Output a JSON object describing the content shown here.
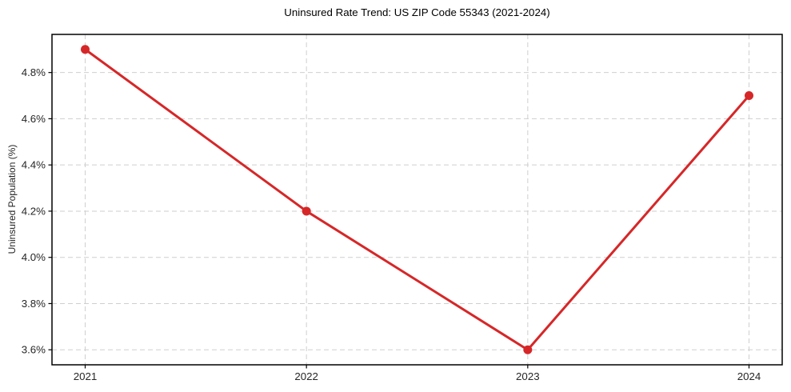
{
  "figure": {
    "background": "#ffffff"
  },
  "chart_data": {
    "type": "line",
    "title": "Uninsured Rate Trend: US ZIP Code 55343 (2021-2024)",
    "xlabel": "",
    "ylabel": "Uninsured Population (%)",
    "x": [
      2021,
      2022,
      2023,
      2024
    ],
    "values": [
      4.9,
      4.2,
      3.6,
      4.7
    ],
    "series_name": "Uninsured rate",
    "x_tick_labels": [
      "2021",
      "2022",
      "2023",
      "2024"
    ],
    "y_ticks": [
      3.6,
      3.8,
      4.0,
      4.2,
      4.4,
      4.6,
      4.8
    ],
    "y_tick_labels": [
      "3.6%",
      "3.8%",
      "4.0%",
      "4.2%",
      "4.4%",
      "4.6%",
      "4.8%"
    ],
    "xlim": [
      2020.85,
      2024.15
    ],
    "ylim": [
      3.535,
      4.965
    ],
    "grid": true,
    "grid_style": "dashed",
    "legend": false,
    "marker": "o",
    "colors": {
      "line": "#d62728",
      "marker": "#d62728",
      "grid": "#cfcfcf",
      "axis": "#000000",
      "tick_label": "#262626",
      "title": "#000000",
      "background": "#ffffff"
    }
  }
}
